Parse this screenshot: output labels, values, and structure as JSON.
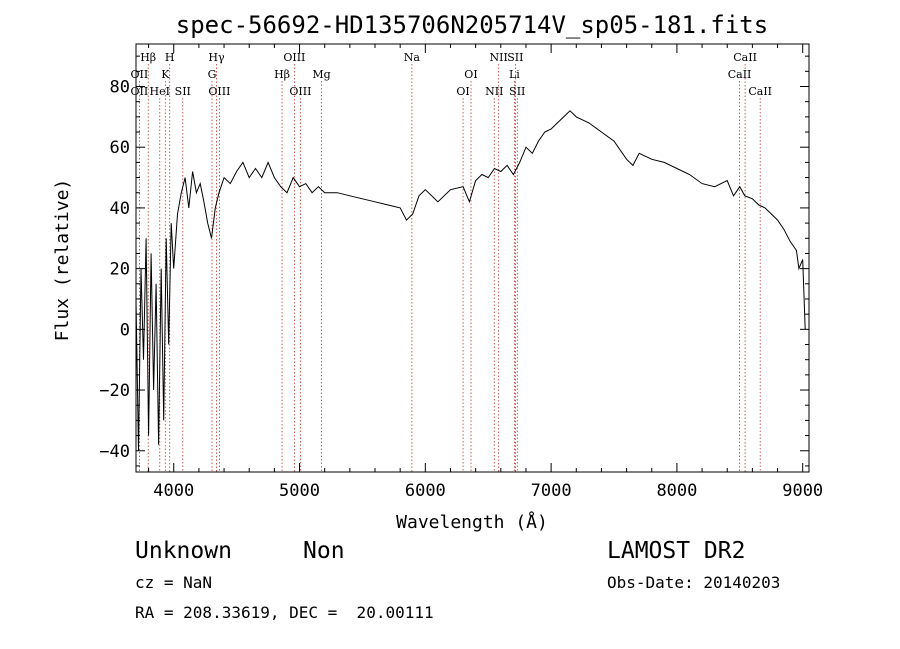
{
  "chart_data": {
    "type": "line",
    "title": "spec-56692-HD135706N205714V_sp05-181.fits",
    "xlabel": "Wavelength (Å)",
    "ylabel": "Flux (relative)",
    "xlim": [
      3700,
      9050
    ],
    "ylim": [
      -47,
      94
    ],
    "xticks": [
      4000,
      5000,
      6000,
      7000,
      8000,
      9000
    ],
    "yticks": [
      -40,
      -20,
      0,
      20,
      40,
      60,
      80
    ],
    "grid": false,
    "series": [
      {
        "x": [
          3700,
          3720,
          3740,
          3760,
          3780,
          3800,
          3820,
          3840,
          3860,
          3880,
          3900,
          3920,
          3940,
          3960,
          3980,
          4000,
          4030,
          4060,
          4090,
          4120,
          4150,
          4180,
          4210,
          4240,
          4270,
          4300,
          4330,
          4360,
          4400,
          4450,
          4500,
          4550,
          4600,
          4650,
          4700,
          4750,
          4800,
          4850,
          4900,
          4950,
          5000,
          5050,
          5100,
          5150,
          5200,
          5300,
          5400,
          5500,
          5600,
          5700,
          5800,
          5850,
          5900,
          5950,
          6000,
          6100,
          6200,
          6300,
          6350,
          6400,
          6450,
          6500,
          6550,
          6600,
          6650,
          6700,
          6750,
          6800,
          6850,
          6900,
          6950,
          7000,
          7050,
          7100,
          7150,
          7200,
          7300,
          7400,
          7500,
          7600,
          7650,
          7700,
          7800,
          7900,
          8000,
          8100,
          8200,
          8300,
          8400,
          8450,
          8500,
          8540,
          8600,
          8650,
          8700,
          8750,
          8800,
          8850,
          8900,
          8950,
          8970,
          9000,
          9020
        ],
        "y": [
          10,
          -40,
          20,
          -10,
          30,
          -35,
          25,
          -20,
          15,
          -38,
          20,
          -30,
          30,
          -5,
          35,
          20,
          38,
          45,
          50,
          40,
          52,
          45,
          48,
          42,
          35,
          30,
          40,
          45,
          50,
          48,
          52,
          55,
          50,
          53,
          50,
          55,
          50,
          47,
          45,
          50,
          47,
          48,
          45,
          47,
          45,
          45,
          44,
          43,
          42,
          41,
          40,
          36,
          38,
          44,
          46,
          42,
          46,
          47,
          42,
          49,
          51,
          50,
          53,
          52,
          54,
          51,
          55,
          60,
          58,
          62,
          65,
          66,
          68,
          70,
          72,
          70,
          68,
          65,
          62,
          56,
          54,
          58,
          56,
          55,
          53,
          51,
          48,
          47,
          49,
          44,
          47,
          44,
          43,
          41,
          40,
          38,
          36,
          33,
          29,
          26,
          20,
          23,
          0
        ],
        "color": "#000000"
      }
    ]
  },
  "line_markers": [
    {
      "label": "Hβ",
      "x": 3797,
      "row": 0
    },
    {
      "label": "H",
      "x": 3968,
      "row": 0
    },
    {
      "label": "Hγ",
      "x": 4340,
      "row": 0
    },
    {
      "label": "OIII",
      "x": 4959,
      "row": 0
    },
    {
      "label": "Na",
      "x": 5893,
      "row": 0
    },
    {
      "label": "NII",
      "x": 6583,
      "row": 0
    },
    {
      "label": "SII",
      "x": 6716,
      "row": 0
    },
    {
      "label": "CaII",
      "x": 8542,
      "row": 0
    },
    {
      "label": "OII",
      "x": 3727,
      "row": 1
    },
    {
      "label": "K",
      "x": 3933,
      "row": 1
    },
    {
      "label": "G",
      "x": 4304,
      "row": 1
    },
    {
      "label": "Hβ",
      "x": 4861,
      "row": 1
    },
    {
      "label": "Mg",
      "x": 5175,
      "row": 1
    },
    {
      "label": "OI",
      "x": 6363,
      "row": 1
    },
    {
      "label": "Li",
      "x": 6708,
      "row": 1
    },
    {
      "label": "CaII",
      "x": 8498,
      "row": 1
    },
    {
      "label": "OII",
      "x": 3727,
      "row": 2
    },
    {
      "label": "HeI",
      "x": 3889,
      "row": 2
    },
    {
      "label": "SII",
      "x": 4072,
      "row": 2
    },
    {
      "label": "OIII",
      "x": 4363,
      "row": 2
    },
    {
      "label": "OIII",
      "x": 5007,
      "row": 2
    },
    {
      "label": "OI",
      "x": 6300,
      "row": 2
    },
    {
      "label": "NII",
      "x": 6548,
      "row": 2
    },
    {
      "label": "SII",
      "x": 6731,
      "row": 2
    },
    {
      "label": "CaII",
      "x": 8662,
      "row": 2
    }
  ],
  "footer": {
    "object": "Unknown",
    "class": "Non",
    "cz": "cz = NaN",
    "radec": "RA = 208.33619, DEC =  20.00111",
    "survey": "LAMOST DR2",
    "obsdate": "Obs-Date: 20140203"
  }
}
